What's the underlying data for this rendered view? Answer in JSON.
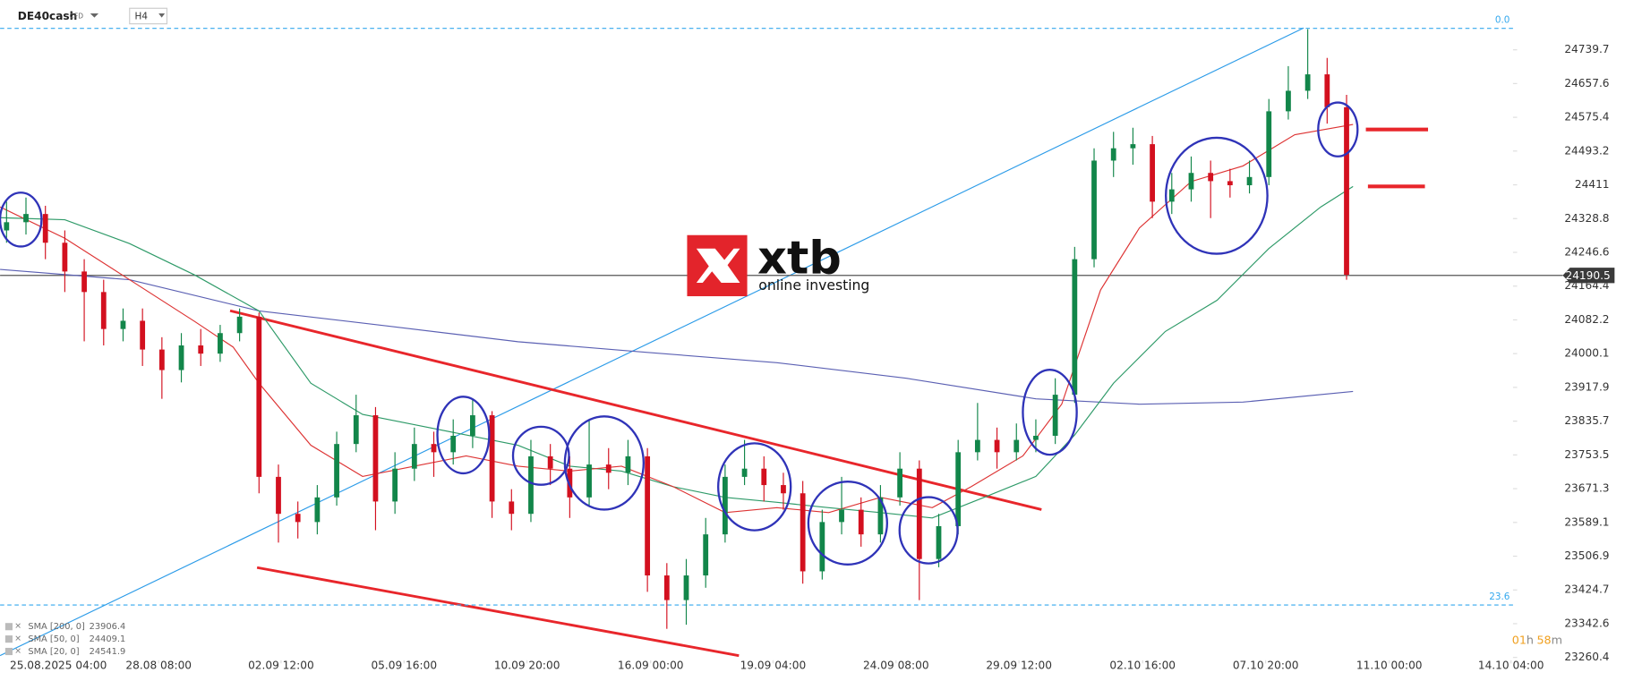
{
  "header": {
    "symbol": "DE40cash",
    "type": "CFD",
    "interval": "H4"
  },
  "logo": {
    "brand": "xtb",
    "tagline": "online investing"
  },
  "countdown": {
    "hours": "01",
    "h": "h",
    "minutes": "58",
    "m": "m"
  },
  "chart_data": {
    "type": "candlestick",
    "up_color": "#12864a",
    "down_color": "#d3101f",
    "x": [
      1,
      4,
      7,
      10,
      13,
      16,
      19,
      22,
      25,
      28,
      31,
      34,
      37,
      40,
      43,
      46,
      49,
      52,
      55,
      58,
      61,
      64,
      67,
      70,
      73,
      76,
      79,
      82,
      85,
      88,
      91,
      94,
      97,
      100,
      103,
      106,
      109,
      112,
      115,
      118,
      121,
      124,
      127,
      130,
      133,
      136,
      139,
      142,
      145,
      148,
      151,
      154,
      157,
      160,
      163,
      166,
      169,
      172,
      175,
      178,
      181,
      184,
      187,
      190,
      193,
      196,
      199,
      202,
      205,
      208
    ],
    "open": [
      24300,
      24320,
      24340,
      24270,
      24200,
      24150,
      24060,
      24080,
      24010,
      23960,
      24020,
      24000,
      24050,
      24090,
      23700,
      23610,
      23590,
      23650,
      23780,
      23850,
      23640,
      23720,
      23780,
      23760,
      23800,
      23850,
      23640,
      23610,
      23750,
      23720,
      23650,
      23730,
      23710,
      23750,
      23460,
      23400,
      23460,
      23560,
      23700,
      23720,
      23680,
      23660,
      23470,
      23590,
      23620,
      23560,
      23650,
      23720,
      23500,
      23580,
      23760,
      23790,
      23760,
      23790,
      23800,
      23900,
      24230,
      24470,
      24500,
      24510,
      24370,
      24400,
      24440,
      24420,
      24410,
      24430,
      24590,
      24640,
      24680,
      24600
    ],
    "high": [
      24370,
      24380,
      24360,
      24300,
      24230,
      24180,
      24110,
      24110,
      24040,
      24050,
      24060,
      24070,
      24110,
      24100,
      23730,
      23640,
      23680,
      23810,
      23900,
      23870,
      23760,
      23820,
      23810,
      23840,
      23890,
      23860,
      23670,
      23790,
      23780,
      23750,
      23840,
      23770,
      23790,
      23770,
      23490,
      23500,
      23600,
      23730,
      23790,
      23750,
      23710,
      23690,
      23620,
      23700,
      23650,
      23680,
      23760,
      23740,
      23610,
      23790,
      23880,
      23820,
      23830,
      23840,
      23940,
      24260,
      24500,
      24540,
      24550,
      24530,
      24440,
      24480,
      24470,
      24450,
      24470,
      24620,
      24700,
      24790,
      24720,
      24630
    ],
    "low": [
      24270,
      24290,
      24230,
      24150,
      24030,
      24020,
      24030,
      23970,
      23890,
      23930,
      23970,
      23980,
      24030,
      23660,
      23540,
      23550,
      23560,
      23630,
      23760,
      23570,
      23610,
      23690,
      23700,
      23730,
      23770,
      23600,
      23570,
      23590,
      23680,
      23600,
      23630,
      23670,
      23680,
      23420,
      23330,
      23340,
      23430,
      23540,
      23680,
      23640,
      23620,
      23440,
      23450,
      23560,
      23530,
      23540,
      23630,
      23400,
      23480,
      23560,
      23740,
      23720,
      23740,
      23760,
      23780,
      23880,
      24210,
      24430,
      24460,
      24330,
      24340,
      24370,
      24330,
      24380,
      24390,
      24410,
      24570,
      24620,
      24560,
      24180
    ],
    "close": [
      24320,
      24340,
      24270,
      24200,
      24150,
      24060,
      24080,
      24010,
      23960,
      24020,
      24000,
      24050,
      24090,
      23700,
      23610,
      23590,
      23650,
      23780,
      23850,
      23640,
      23720,
      23780,
      23760,
      23800,
      23850,
      23640,
      23610,
      23750,
      23720,
      23650,
      23730,
      23710,
      23750,
      23460,
      23400,
      23460,
      23560,
      23700,
      23720,
      23680,
      23660,
      23470,
      23590,
      23620,
      23560,
      23650,
      23720,
      23500,
      23580,
      23760,
      23790,
      23760,
      23790,
      23800,
      23900,
      24230,
      24470,
      24500,
      24510,
      24370,
      24400,
      24440,
      24420,
      24410,
      24430,
      24590,
      24640,
      24680,
      24600,
      24192
    ],
    "indicators": [
      {
        "name": "SMA [200, 0]",
        "last": 23906.4,
        "color": "#5b60b3",
        "x": [
          0,
          20,
          40,
          60,
          80,
          100,
          120,
          140,
          160,
          176,
          192,
          209
        ],
        "values": [
          24205,
          24180,
          24104,
          24067,
          24029,
          24003,
          23978,
          23940,
          23890,
          23877,
          23882,
          23908
        ]
      },
      {
        "name": "SMA [50, 0]",
        "last": 24409.1,
        "color": "#2e9a68",
        "x": [
          0,
          10,
          20,
          30,
          40,
          48,
          56,
          64,
          72,
          80,
          88,
          96,
          104,
          112,
          120,
          128,
          136,
          144,
          152,
          160,
          166,
          172,
          180,
          188,
          196,
          204,
          209
        ],
        "values": [
          24331,
          24326,
          24268,
          24192,
          24104,
          23928,
          23852,
          23827,
          23802,
          23777,
          23726,
          23714,
          23676,
          23650,
          23638,
          23625,
          23613,
          23600,
          23650,
          23701,
          23802,
          23928,
          24054,
          24130,
          24256,
          24357,
          24407
        ]
      },
      {
        "name": "SMA [20, 0]",
        "last": 24541.9,
        "color": "#dd3333",
        "x": [
          0,
          10,
          20,
          30,
          36,
          40,
          48,
          56,
          64,
          72,
          80,
          88,
          96,
          104,
          112,
          120,
          128,
          136,
          144,
          150,
          158,
          164,
          170,
          176,
          184,
          192,
          200,
          209
        ],
        "values": [
          24357,
          24281,
          24180,
          24079,
          24016,
          23928,
          23777,
          23701,
          23726,
          23751,
          23726,
          23714,
          23726,
          23676,
          23613,
          23625,
          23613,
          23650,
          23625,
          23676,
          23751,
          23877,
          24155,
          24306,
          24419,
          24457,
          24533,
          24558
        ]
      }
    ],
    "last_price": 24190.5,
    "fib_levels": [
      {
        "label": "0.0",
        "value": 24792
      },
      {
        "label": "23.6",
        "value": 23388
      }
    ],
    "xlim": [
      0,
      251
    ],
    "ylim": [
      23203,
      24861
    ],
    "xticks": [
      {
        "value": 9,
        "label": "25.08.2025 04:00"
      },
      {
        "value": 24.5,
        "label": "28.08 08:00"
      },
      {
        "value": 43.4,
        "label": "02.09 12:00"
      },
      {
        "value": 62.4,
        "label": "05.09 16:00"
      },
      {
        "value": 81.4,
        "label": "10.09 20:00"
      },
      {
        "value": 100.5,
        "label": "16.09 00:00"
      },
      {
        "value": 119.4,
        "label": "19.09 04:00"
      },
      {
        "value": 138.4,
        "label": "24.09 08:00"
      },
      {
        "value": 157.4,
        "label": "29.09 12:00"
      },
      {
        "value": 176.5,
        "label": "02.10 16:00"
      },
      {
        "value": 195.5,
        "label": "07.10 20:00"
      },
      {
        "value": 214.6,
        "label": "11.10 00:00"
      },
      {
        "value": 233.4,
        "label": "14.10 04:00"
      }
    ],
    "yticks": [
      24739.7,
      24657.6,
      24575.4,
      24493.2,
      24411.0,
      24328.8,
      24246.6,
      24164.4,
      24082.2,
      24000.1,
      23917.9,
      23835.7,
      23753.5,
      23671.3,
      23589.1,
      23506.9,
      23424.7,
      23342.6,
      23260.4
    ],
    "grid": false
  }
}
